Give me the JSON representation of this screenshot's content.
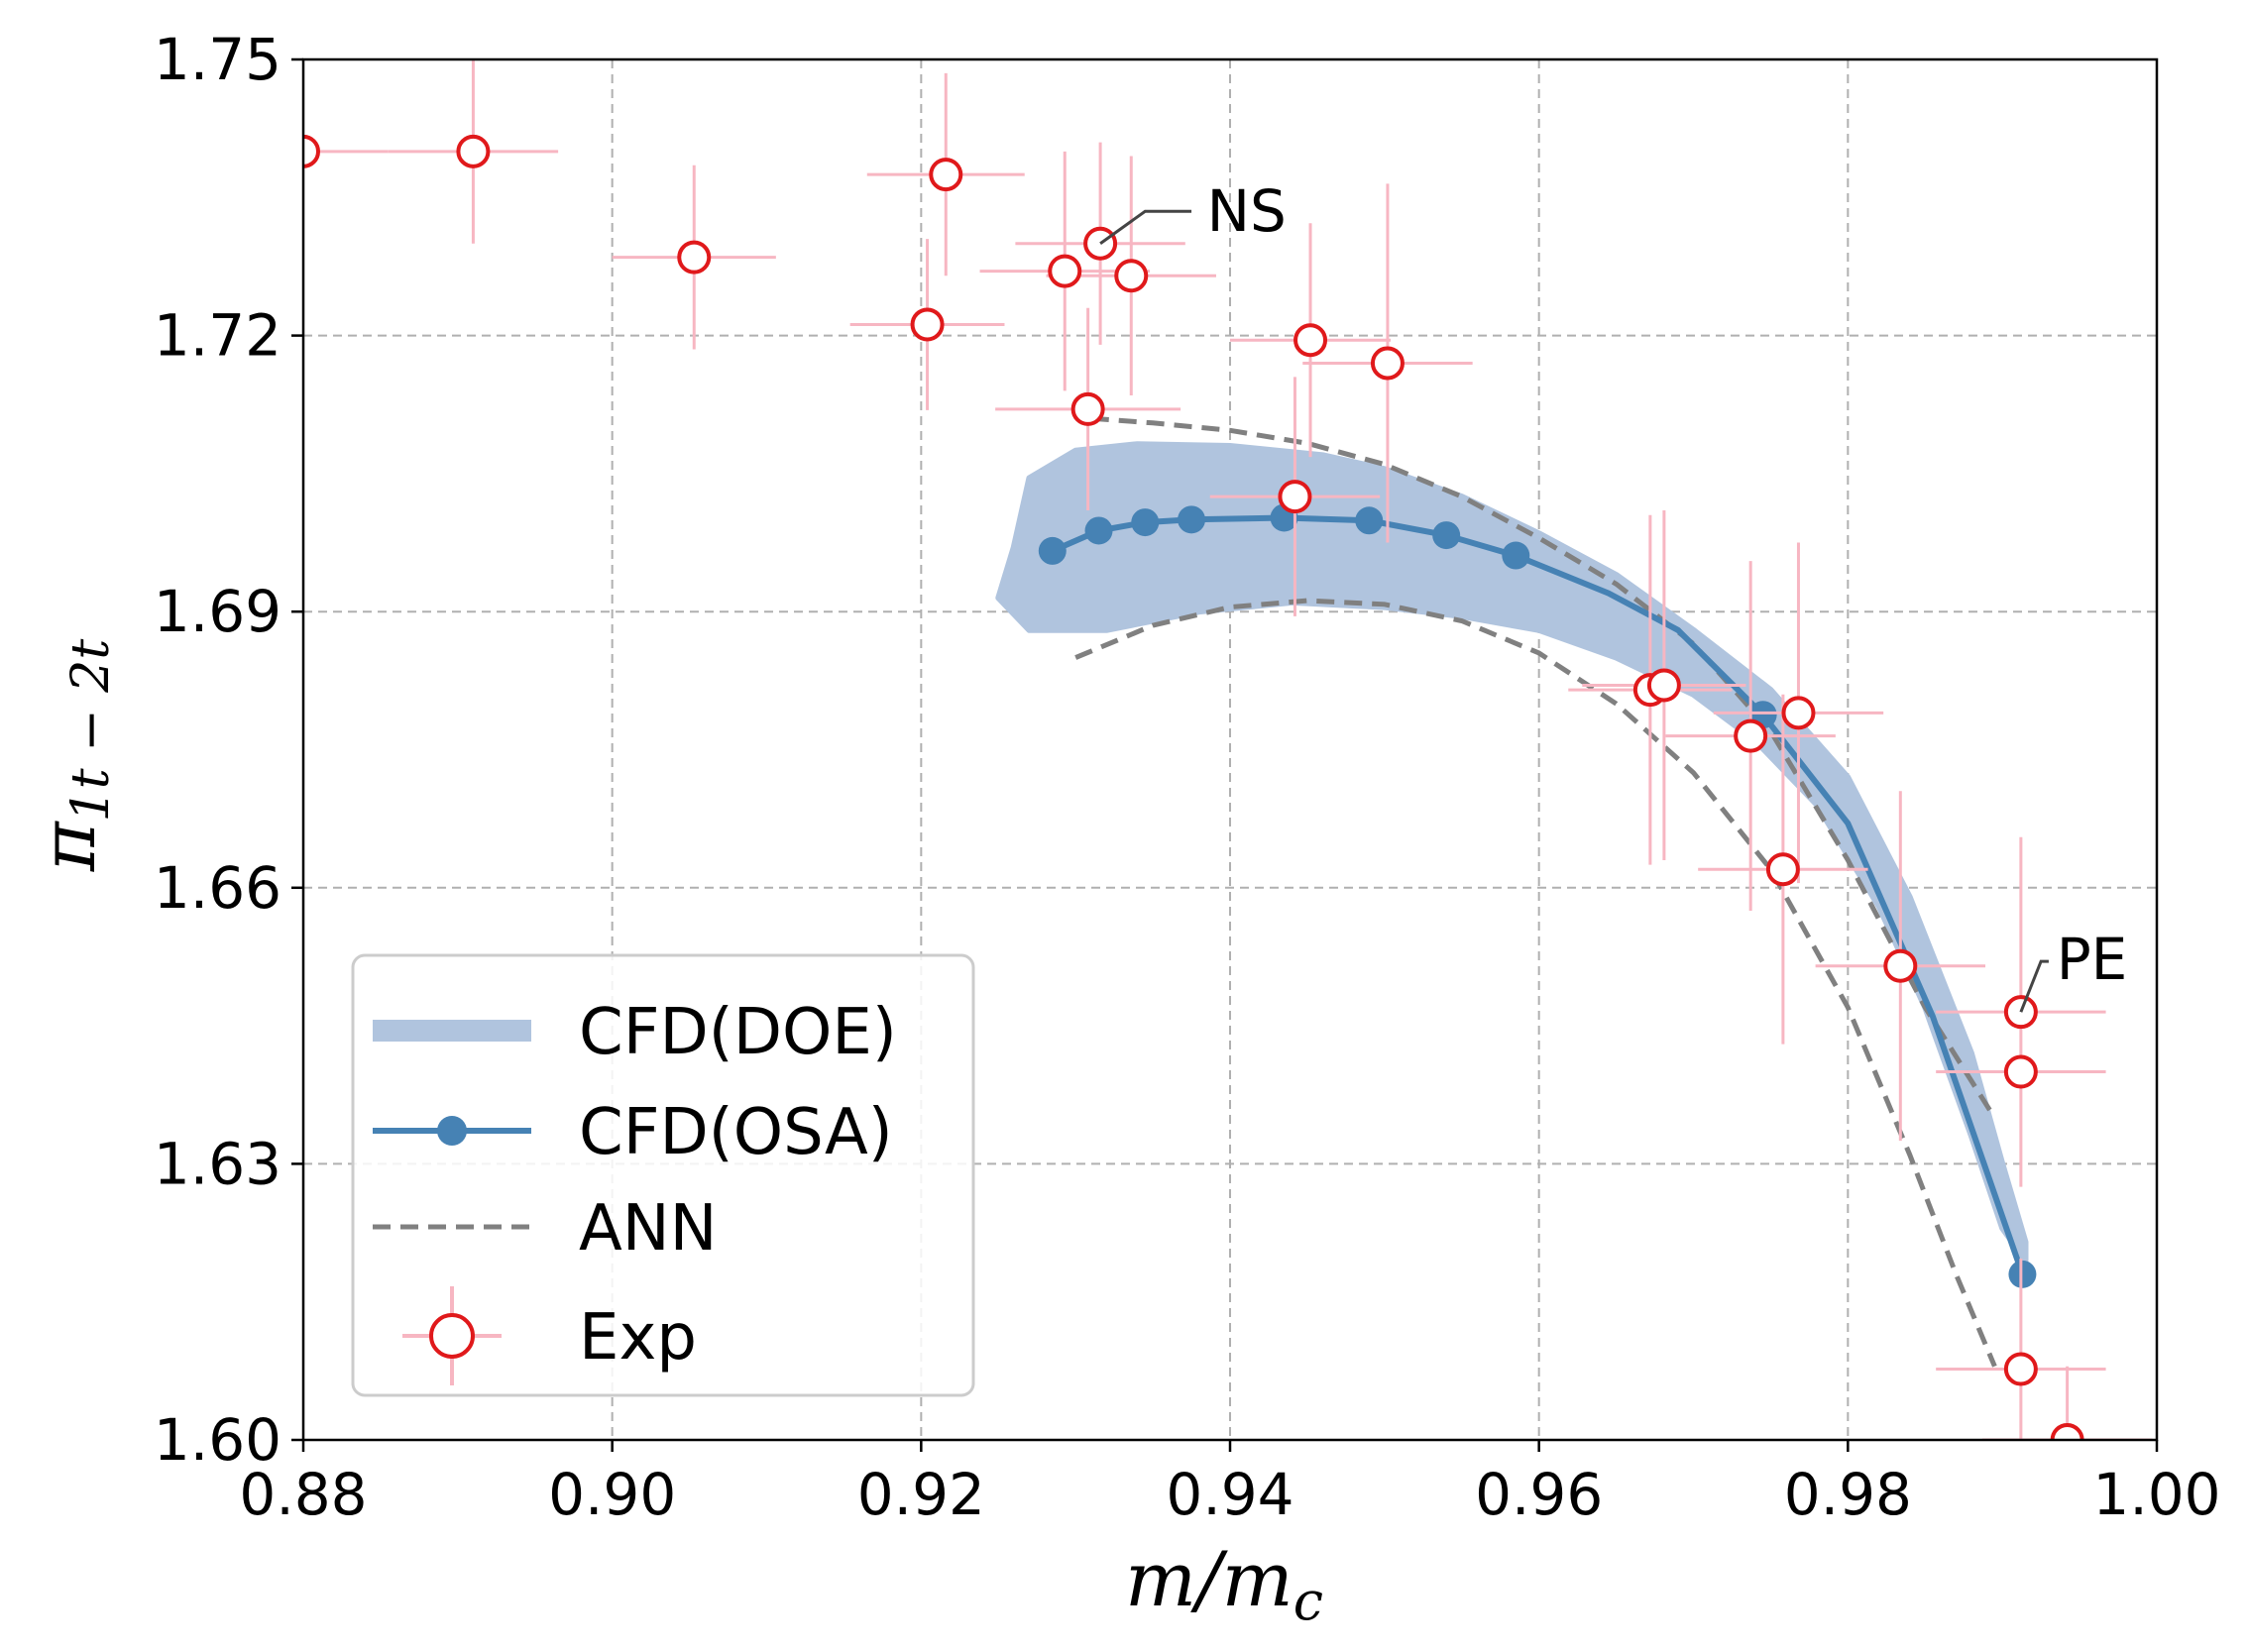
{
  "chart_data": {
    "type": "line",
    "xlabel_base": "m/m",
    "xlabel_sub": "c",
    "ylabel_base": "π",
    "ylabel_sub": "1t − 2t",
    "xlim": [
      0.88,
      1.0
    ],
    "ylim": [
      1.6,
      1.75
    ],
    "xticks": [
      0.88,
      0.9,
      0.92,
      0.94,
      0.96,
      0.98,
      1.0
    ],
    "yticks": [
      1.6,
      1.63,
      1.66,
      1.69,
      1.72,
      1.75
    ],
    "xtick_labels": [
      "0.88",
      "0.90",
      "0.92",
      "0.94",
      "0.96",
      "0.98",
      "1.00"
    ],
    "ytick_labels": [
      "1.60",
      "1.63",
      "1.66",
      "1.69",
      "1.72",
      "1.75"
    ],
    "grid": true,
    "legend_position": "lower-left",
    "colors": {
      "doe": "#b0c4de",
      "osa": "#4682b4",
      "ann": "#808080",
      "exp_marker": "#e0191b",
      "exp_error": "#f7b6c2",
      "grid": "#b0b0b0"
    },
    "legend": [
      {
        "key": "doe",
        "label": "CFD(DOE)"
      },
      {
        "key": "osa",
        "label": "CFD(OSA)"
      },
      {
        "key": "ann",
        "label": "ANN"
      },
      {
        "key": "exp",
        "label": "Exp"
      }
    ],
    "series": [
      {
        "name": "CFD(DOE)",
        "key": "doe",
        "kind": "band",
        "upper": [
          [
            0.926,
            1.697
          ],
          [
            0.927,
            1.7045
          ],
          [
            0.93,
            1.7075
          ],
          [
            0.934,
            1.7082
          ],
          [
            0.94,
            1.708
          ],
          [
            0.946,
            1.707
          ],
          [
            0.95,
            1.7055
          ],
          [
            0.955,
            1.7025
          ],
          [
            0.96,
            1.6985
          ],
          [
            0.965,
            1.694
          ],
          [
            0.97,
            1.688
          ],
          [
            0.975,
            1.6815
          ],
          [
            0.98,
            1.672
          ],
          [
            0.984,
            1.659
          ],
          [
            0.988,
            1.642
          ],
          [
            0.99,
            1.63
          ],
          [
            0.9915,
            1.6215
          ]
        ],
        "lower": [
          [
            0.9915,
            1.6195
          ],
          [
            0.99,
            1.623
          ],
          [
            0.988,
            1.633
          ],
          [
            0.985,
            1.647
          ],
          [
            0.982,
            1.658
          ],
          [
            0.978,
            1.669
          ],
          [
            0.974,
            1.676
          ],
          [
            0.97,
            1.681
          ],
          [
            0.965,
            1.685
          ],
          [
            0.96,
            1.688
          ],
          [
            0.955,
            1.6895
          ],
          [
            0.95,
            1.6905
          ],
          [
            0.944,
            1.691
          ],
          [
            0.938,
            1.69
          ],
          [
            0.932,
            1.688
          ],
          [
            0.927,
            1.688
          ],
          [
            0.925,
            1.6915
          ]
        ]
      },
      {
        "name": "CFD(OSA)",
        "key": "osa",
        "kind": "line",
        "points": [
          [
            0.9285,
            1.6966
          ],
          [
            0.9315,
            1.6988
          ],
          [
            0.9345,
            1.6997
          ],
          [
            0.9375,
            1.7
          ],
          [
            0.9435,
            1.7002
          ],
          [
            0.949,
            1.6999
          ],
          [
            0.954,
            1.6983
          ],
          [
            0.9585,
            1.6961
          ],
          [
            0.9645,
            1.692
          ],
          [
            0.969,
            1.688
          ],
          [
            0.9745,
            1.6788
          ],
          [
            0.98,
            1.667
          ],
          [
            0.9855,
            1.646
          ],
          [
            0.9913,
            1.618
          ]
        ],
        "markers": [
          [
            0.9285,
            1.6966
          ],
          [
            0.9315,
            1.6988
          ],
          [
            0.9345,
            1.6997
          ],
          [
            0.9375,
            1.7
          ],
          [
            0.9435,
            1.7002
          ],
          [
            0.949,
            1.6999
          ],
          [
            0.954,
            1.6983
          ],
          [
            0.9585,
            1.6961
          ],
          [
            0.9745,
            1.6788
          ],
          [
            0.9913,
            1.618
          ]
        ]
      },
      {
        "name": "ANN",
        "key": "ann",
        "kind": "dashed",
        "curves": [
          [
            [
              0.931,
              1.711
            ],
            [
              0.935,
              1.7105
            ],
            [
              0.94,
              1.7097
            ],
            [
              0.945,
              1.7083
            ],
            [
              0.95,
              1.706
            ],
            [
              0.955,
              1.7025
            ],
            [
              0.96,
              1.698
            ],
            [
              0.965,
              1.693
            ],
            [
              0.97,
              1.6865
            ],
            [
              0.975,
              1.677
            ],
            [
              0.98,
              1.663
            ],
            [
              0.985,
              1.647
            ],
            [
              0.9895,
              1.635
            ]
          ],
          [
            [
              0.93,
              1.685
            ],
            [
              0.935,
              1.6885
            ],
            [
              0.94,
              1.6905
            ],
            [
              0.945,
              1.6912
            ],
            [
              0.95,
              1.6908
            ],
            [
              0.955,
              1.689
            ],
            [
              0.96,
              1.6855
            ],
            [
              0.965,
              1.68
            ],
            [
              0.97,
              1.6725
            ],
            [
              0.975,
              1.662
            ],
            [
              0.98,
              1.647
            ],
            [
              0.984,
              1.631
            ],
            [
              0.987,
              1.618
            ],
            [
              0.9895,
              1.608
            ]
          ]
        ]
      },
      {
        "name": "Exp",
        "key": "exp",
        "kind": "scatter_errorbars",
        "points": [
          {
            "x": 0.88,
            "y": 1.74,
            "xerr": 0.0055,
            "yerr": 0.0
          },
          {
            "x": 0.891,
            "y": 1.74,
            "xerr": 0.0055,
            "yerr": 0.01
          },
          {
            "x": 0.9053,
            "y": 1.7285,
            "xerr": 0.0053,
            "yerr": 0.01
          },
          {
            "x": 0.9204,
            "y": 1.7212,
            "xerr": 0.005,
            "yerr": 0.0093
          },
          {
            "x": 0.9216,
            "y": 1.7375,
            "xerr": 0.0051,
            "yerr": 0.011
          },
          {
            "x": 0.9293,
            "y": 1.727,
            "xerr": 0.0055,
            "yerr": 0.013
          },
          {
            "x": 0.9308,
            "y": 1.712,
            "xerr": 0.006,
            "yerr": 0.011
          },
          {
            "x": 0.9316,
            "y": 1.73,
            "xerr": 0.0055,
            "yerr": 0.011
          },
          {
            "x": 0.9336,
            "y": 1.7265,
            "xerr": 0.0055,
            "yerr": 0.013
          },
          {
            "x": 0.9442,
            "y": 1.7025,
            "xerr": 0.0055,
            "yerr": 0.013
          },
          {
            "x": 0.9452,
            "y": 1.7195,
            "xerr": 0.0052,
            "yerr": 0.0127
          },
          {
            "x": 0.9502,
            "y": 1.717,
            "xerr": 0.0055,
            "yerr": 0.0195
          },
          {
            "x": 0.9672,
            "y": 1.6815,
            "xerr": 0.0053,
            "yerr": 0.019
          },
          {
            "x": 0.9681,
            "y": 1.682,
            "xerr": 0.0053,
            "yerr": 0.019
          },
          {
            "x": 0.9737,
            "y": 1.6765,
            "xerr": 0.0055,
            "yerr": 0.019
          },
          {
            "x": 0.9758,
            "y": 1.662,
            "xerr": 0.0055,
            "yerr": 0.019
          },
          {
            "x": 0.9768,
            "y": 1.679,
            "xerr": 0.0055,
            "yerr": 0.0185
          },
          {
            "x": 0.9834,
            "y": 1.6515,
            "xerr": 0.0055,
            "yerr": 0.019
          },
          {
            "x": 0.9912,
            "y": 1.6465,
            "xerr": 0.0055,
            "yerr": 0.019
          },
          {
            "x": 0.9912,
            "y": 1.64,
            "xerr": 0.0055,
            "yerr": 0.0
          },
          {
            "x": 0.9912,
            "y": 1.6077,
            "xerr": 0.0055,
            "yerr": 0.012
          },
          {
            "x": 0.9942,
            "y": 1.6,
            "xerr": 0.0055,
            "yerr": 0.008
          }
        ]
      }
    ],
    "annotations": [
      {
        "text": "NS",
        "point": [
          0.9316,
          1.73
        ],
        "elbow": [
          0.9345,
          1.7335
        ],
        "end": [
          0.9375,
          1.7335
        ],
        "text_at": [
          0.9385,
          1.7335
        ]
      },
      {
        "text": "PE",
        "point": [
          0.9912,
          1.6465
        ],
        "elbow": [
          0.9925,
          1.652
        ],
        "end": [
          0.993,
          1.652
        ],
        "text_at": [
          0.9935,
          1.6522
        ]
      }
    ]
  }
}
